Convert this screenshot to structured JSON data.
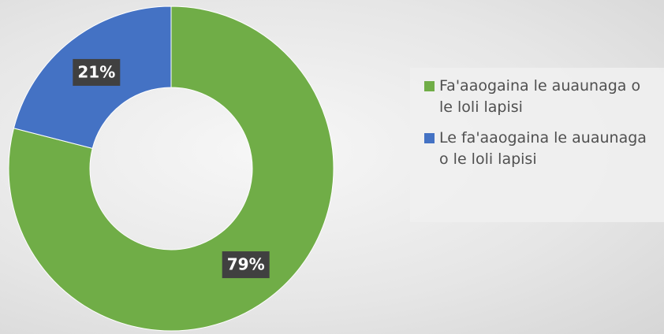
{
  "chart_data": {
    "type": "pie",
    "categories": [
      "Fa'aaogaina le auaunaga o le loli lapisi",
      "Le fa'aaogaina le auaunaga o le loli lapisi"
    ],
    "values": [
      79,
      21
    ],
    "value_labels": [
      "79%",
      "21%"
    ],
    "colors": [
      "#70ad47",
      "#4472c4"
    ],
    "legend": "right"
  }
}
